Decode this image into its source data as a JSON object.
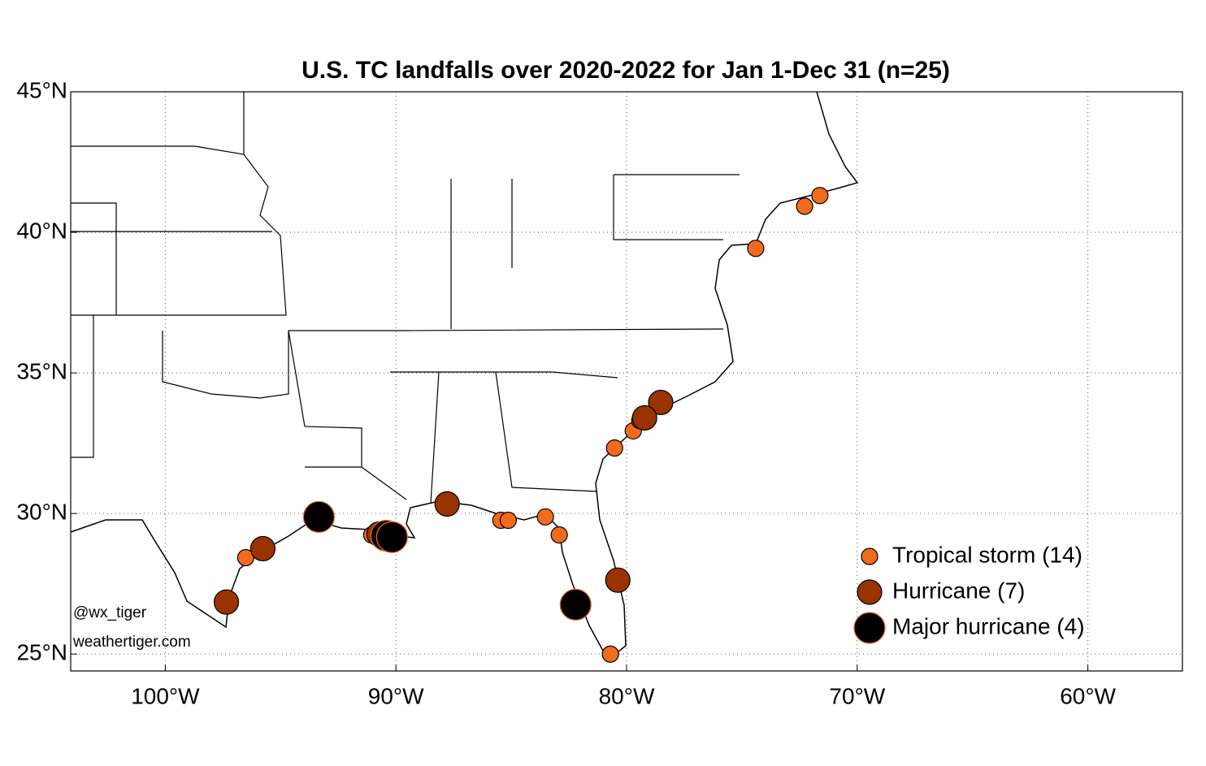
{
  "chart_data": {
    "type": "scatter",
    "title": "U.S. TC landfalls over 2020-2022 for Jan 1-Dec 31 (n=25)",
    "xlim": [
      -104.1,
      -55.9
    ],
    "ylim": [
      24.4,
      45
    ],
    "xticks": [
      {
        "value": -100,
        "label": "100°W"
      },
      {
        "value": -90,
        "label": "90°W"
      },
      {
        "value": -80,
        "label": "80°W"
      },
      {
        "value": -70,
        "label": "70°W"
      },
      {
        "value": -60,
        "label": "60°W"
      }
    ],
    "yticks": [
      {
        "value": 25,
        "label": "25°N"
      },
      {
        "value": 30,
        "label": "30°N"
      },
      {
        "value": 35,
        "label": "35°N"
      },
      {
        "value": 40,
        "label": "40°N"
      },
      {
        "value": 45,
        "label": "45°N"
      }
    ],
    "grid": true,
    "legend": "lower right",
    "annotations": [
      "@wx_tiger",
      "weathertiger.com"
    ],
    "series": [
      {
        "name": "Tropical storm (14)",
        "color": "#f26b1d",
        "x": [
          -71.62,
          -72.28,
          -74.4,
          -80.52,
          -79.71,
          -79.43,
          -96.51,
          -91.05,
          -89.89,
          -85.45,
          -85.13,
          -83.52,
          -82.92,
          -80.7
        ],
        "values": [
          41.31,
          40.93,
          39.43,
          32.33,
          32.94,
          33.31,
          28.43,
          29.24,
          29.3,
          29.76,
          29.76,
          29.88,
          29.24,
          25.0
        ]
      },
      {
        "name": "Hurricane (7)",
        "color": "#993300",
        "x": [
          -97.35,
          -95.77,
          -87.78,
          -80.38,
          -78.52,
          -79.22,
          -90.73
        ],
        "values": [
          26.85,
          28.75,
          30.34,
          27.63,
          33.95,
          33.4,
          29.27
        ]
      },
      {
        "name": "Major hurricane (4)",
        "color": "#000000",
        "x": [
          -93.34,
          -90.42,
          -90.17,
          -82.21
        ],
        "values": [
          29.88,
          29.21,
          29.16,
          26.76
        ]
      }
    ]
  }
}
